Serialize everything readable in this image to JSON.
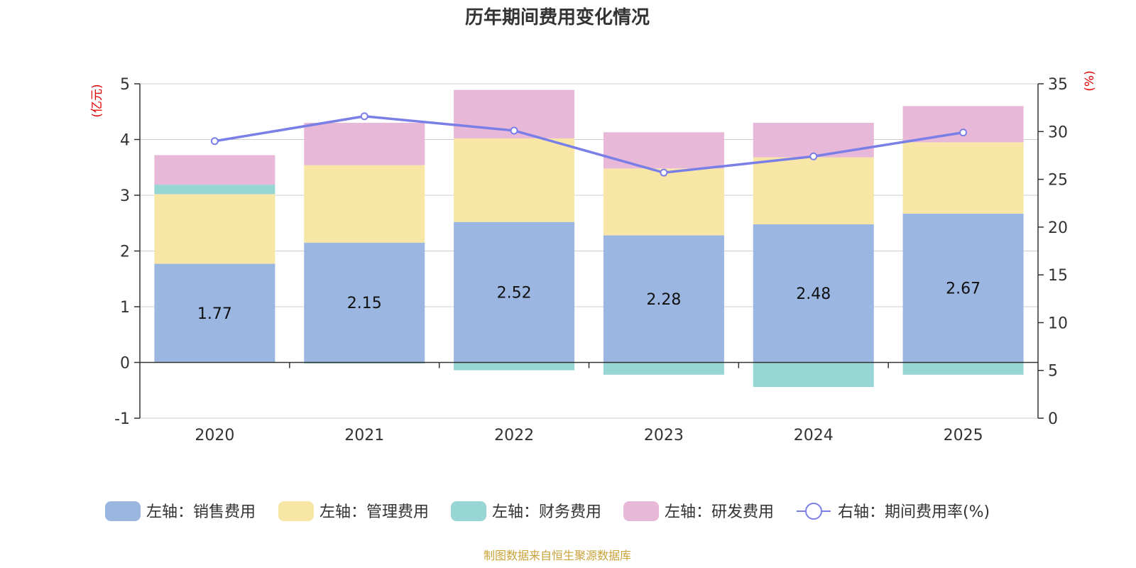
{
  "chart_data": {
    "type": "bar",
    "title": "历年期间费用变化情况",
    "categories": [
      "2020",
      "2021",
      "2022",
      "2023",
      "2024",
      "2025"
    ],
    "left_axis": {
      "unit_label": "(亿元)",
      "ylim": [
        -1,
        5
      ],
      "ticks": [
        -1,
        0,
        1,
        2,
        3,
        4,
        5
      ]
    },
    "right_axis": {
      "unit_label": "(%)",
      "ylim": [
        0,
        35
      ],
      "ticks": [
        0,
        5,
        10,
        15,
        20,
        25,
        30,
        35
      ]
    },
    "series": [
      {
        "name": "左轴：销售费用",
        "type": "bar",
        "axis": "left",
        "stack": true,
        "color": "#9bb7e1",
        "values": [
          1.77,
          2.15,
          2.52,
          2.28,
          2.48,
          2.67
        ],
        "show_labels": true
      },
      {
        "name": "左轴：管理费用",
        "type": "bar",
        "axis": "left",
        "stack": true,
        "color": "#f7e6a5",
        "values": [
          1.25,
          1.39,
          1.5,
          1.2,
          1.2,
          1.28
        ]
      },
      {
        "name": "左轴：财务费用",
        "type": "bar",
        "axis": "left",
        "stack": true,
        "color": "#98d5d5",
        "values": [
          0.17,
          -0.02,
          -0.14,
          -0.22,
          -0.44,
          -0.22
        ]
      },
      {
        "name": "左轴：研发费用",
        "type": "bar",
        "axis": "left",
        "stack": true,
        "color": "#e8b8d8",
        "values": [
          0.53,
          0.76,
          0.87,
          0.65,
          0.62,
          0.65
        ]
      },
      {
        "name": "右轴：期间费用率(%)",
        "type": "line",
        "axis": "right",
        "color": "#7a7fe8",
        "values": [
          29.0,
          31.6,
          30.1,
          25.7,
          27.4,
          29.9
        ]
      }
    ],
    "grid": true,
    "legend_position": "bottom"
  },
  "source_note": "制图数据来自恒生聚源数据库"
}
